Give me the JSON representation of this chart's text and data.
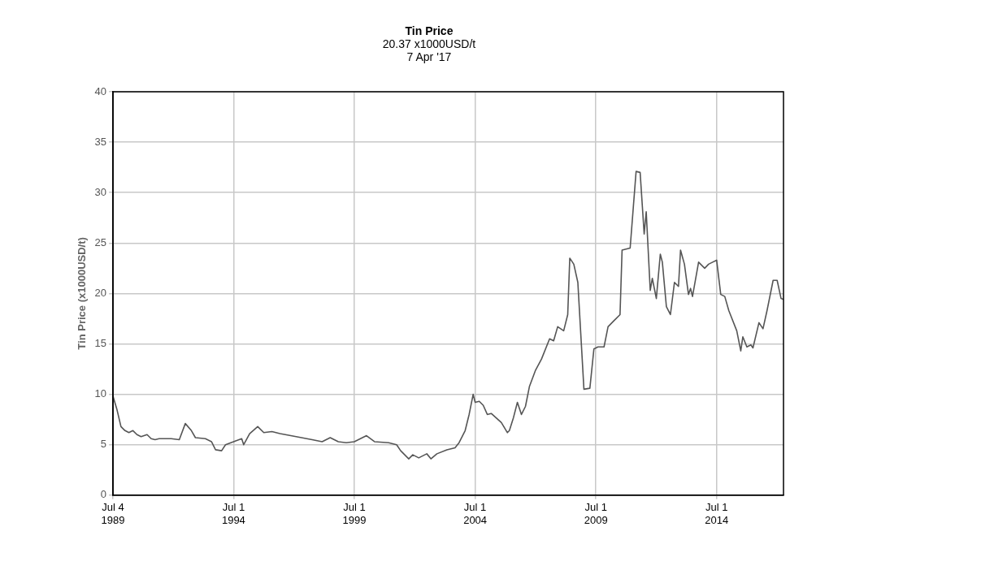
{
  "chart_data": {
    "type": "line",
    "title": "Tin Price",
    "subtitle": "20.37 x1000USD/t",
    "annotations": [
      "7 Apr '17"
    ],
    "ylabel": "Tin Price (x1000USD/t)",
    "xlim": [
      "1989-07-04",
      "2017-04-07"
    ],
    "xticks": [
      {
        "value": "1989-07-04",
        "label": "Jul 4 1989"
      },
      {
        "value": "1994-07-01",
        "label": "Jul 1 1994"
      },
      {
        "value": "1999-07-01",
        "label": "Jul 1 1999"
      },
      {
        "value": "2004-07-01",
        "label": "Jul 1 2004"
      },
      {
        "value": "2009-07-01",
        "label": "Jul 1 2009"
      },
      {
        "value": "2014-07-01",
        "label": "Jul 1 2014"
      }
    ],
    "ylim": [
      0,
      40
    ],
    "yticks": [
      0,
      5,
      10,
      15,
      20,
      25,
      30,
      35,
      40
    ],
    "grid": true,
    "legend": false,
    "x": [
      "1989-07-04",
      "1989-09",
      "1989-11",
      "1990-01",
      "1990-03",
      "1990-05",
      "1990-07",
      "1990-09",
      "1990-12",
      "1991-02",
      "1991-04",
      "1991-06",
      "1991-12",
      "1992-04",
      "1992-07",
      "1992-10",
      "1992-12",
      "1993-05",
      "1993-08",
      "1993-10",
      "1994-01",
      "1994-03",
      "1994-07",
      "1994-11",
      "1994-12",
      "1995-03",
      "1995-07",
      "1995-10",
      "1996-02",
      "1996-06",
      "1997-02",
      "1997-10",
      "1998-03",
      "1998-07",
      "1998-11",
      "1999-03",
      "1999-07",
      "2000-01",
      "2000-05",
      "2000-12",
      "2001-04",
      "2001-06",
      "2001-10",
      "2001-12",
      "2002-03",
      "2002-07",
      "2002-09",
      "2002-12",
      "2003-05",
      "2003-09",
      "2003-11",
      "2004-02",
      "2004-04",
      "2004-06",
      "2004-07",
      "2004-09",
      "2004-11",
      "2005-01",
      "2005-03",
      "2005-08",
      "2005-11",
      "2005-12",
      "2006-02",
      "2006-04",
      "2006-06",
      "2006-08",
      "2006-10",
      "2007-01",
      "2007-04",
      "2007-08",
      "2007-10",
      "2007-12",
      "2008-03",
      "2008-05",
      "2008-06",
      "2008-08",
      "2008-10",
      "2009-01",
      "2009-04",
      "2009-06",
      "2009-08",
      "2009-11",
      "2010-01",
      "2010-04",
      "2010-07",
      "2010-08",
      "2010-12",
      "2011-03",
      "2011-05",
      "2011-07",
      "2011-08",
      "2011-10",
      "2011-11",
      "2012-01",
      "2012-03",
      "2012-04",
      "2012-06",
      "2012-08",
      "2012-10",
      "2012-12",
      "2013-01",
      "2013-03",
      "2013-05",
      "2013-06",
      "2013-07",
      "2013-10",
      "2014-01",
      "2014-03",
      "2014-05",
      "2014-07",
      "2014-09",
      "2014-11",
      "2015-01",
      "2015-05",
      "2015-07",
      "2015-08",
      "2015-10",
      "2015-12",
      "2016-01",
      "2016-04",
      "2016-06",
      "2016-08",
      "2016-11",
      "2017-01",
      "2017-03",
      "2017-04-07"
    ],
    "series": [
      {
        "color": "#555555",
        "values": [
          9.8,
          8.5,
          6.8,
          6.4,
          6.2,
          6.4,
          6.0,
          5.8,
          6.0,
          5.6,
          5.5,
          5.6,
          5.6,
          5.5,
          7.1,
          6.4,
          5.7,
          5.6,
          5.3,
          4.5,
          4.4,
          5.0,
          5.3,
          5.6,
          5.0,
          6.1,
          6.8,
          6.2,
          6.3,
          6.1,
          5.8,
          5.5,
          5.3,
          5.7,
          5.3,
          5.2,
          5.3,
          5.9,
          5.3,
          5.2,
          5.0,
          4.4,
          3.6,
          4.0,
          3.7,
          4.1,
          3.6,
          4.1,
          4.5,
          4.7,
          5.2,
          6.4,
          8.0,
          10.0,
          9.2,
          9.3,
          8.9,
          8.0,
          8.1,
          7.2,
          6.2,
          6.4,
          7.7,
          9.2,
          8.0,
          8.8,
          10.8,
          12.4,
          13.5,
          15.5,
          15.3,
          16.7,
          16.3,
          17.9,
          23.5,
          22.9,
          21.1,
          10.5,
          10.6,
          14.5,
          14.7,
          14.7,
          16.7,
          17.3,
          17.9,
          24.3,
          24.5,
          32.1,
          32.0,
          25.9,
          28.1,
          20.3,
          21.5,
          19.5,
          23.9,
          23.1,
          18.7,
          17.9,
          21.1,
          20.7,
          24.3,
          22.9,
          19.9,
          20.5,
          19.7,
          23.1,
          22.5,
          22.9,
          23.1,
          23.3,
          19.9,
          19.7,
          18.3,
          16.3,
          14.3,
          15.7,
          14.7,
          14.9,
          14.6,
          17.1,
          16.5,
          18.3,
          21.3,
          21.3,
          19.5,
          19.4
        ]
      }
    ]
  }
}
